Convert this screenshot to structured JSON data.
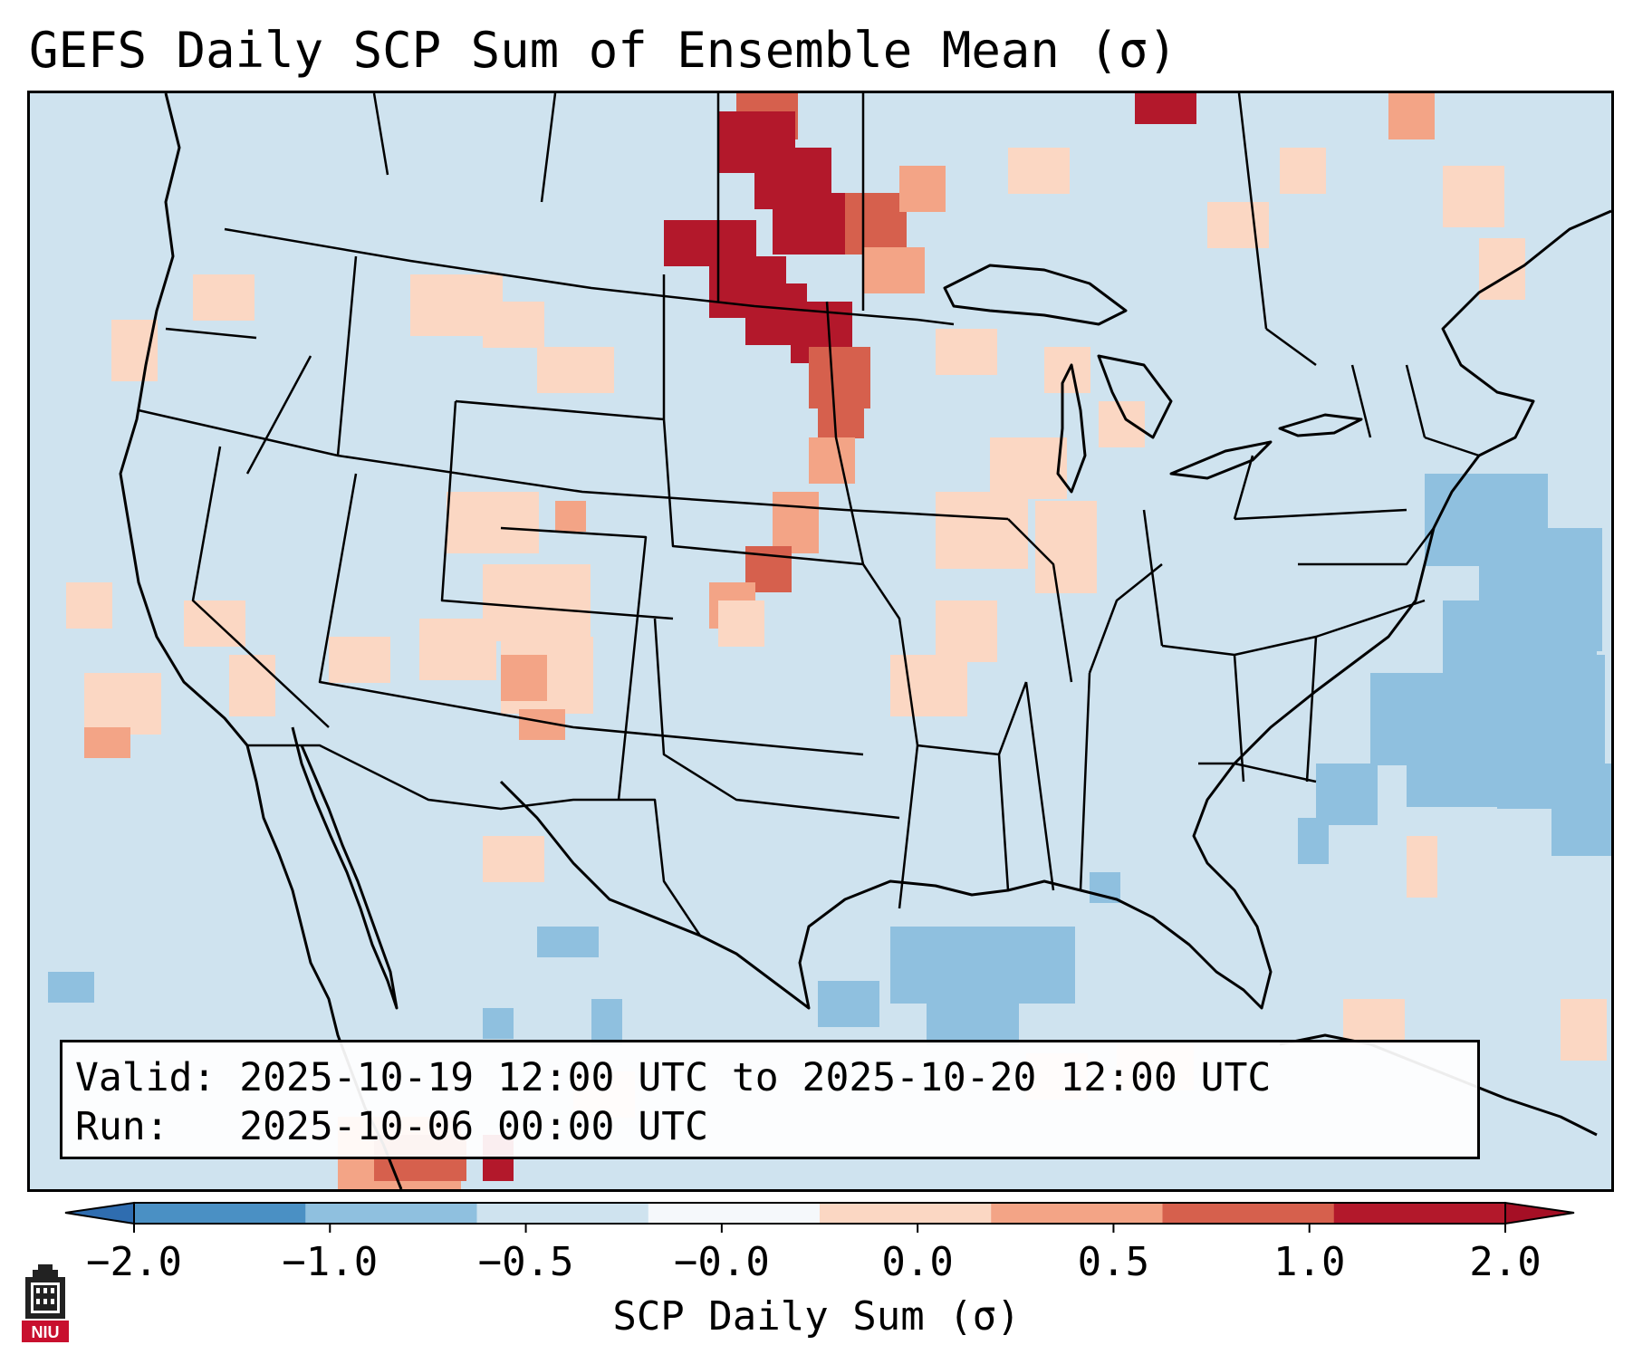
{
  "title": "GEFS Daily SCP Sum of Ensemble Mean (σ)",
  "info": {
    "valid_label": "Valid:",
    "valid_value": "2025-10-19 12:00 UTC to 2025-10-20 12:00 UTC",
    "run_label": "Run:",
    "run_value": "2025-10-06 00:00 UTC"
  },
  "colorbar": {
    "label": "SCP Daily Sum (σ)",
    "ticks": [
      "−2.0",
      "−1.0",
      "−0.5",
      "−0.0",
      "0.0",
      "0.5",
      "1.0",
      "2.0"
    ],
    "bins": [
      "#4a90c4",
      "#8fc0df",
      "#cfe3ef",
      "#f5f8fb",
      "#fbd7c3",
      "#f3a486",
      "#d6604d",
      "#b3182b"
    ],
    "extend_under": "#2f6db0",
    "extend_over": "#a50f25"
  },
  "map": {
    "background_bin": "#cfe3ef",
    "line_color": "#000000"
  },
  "logo": {
    "text": "NIU"
  }
}
